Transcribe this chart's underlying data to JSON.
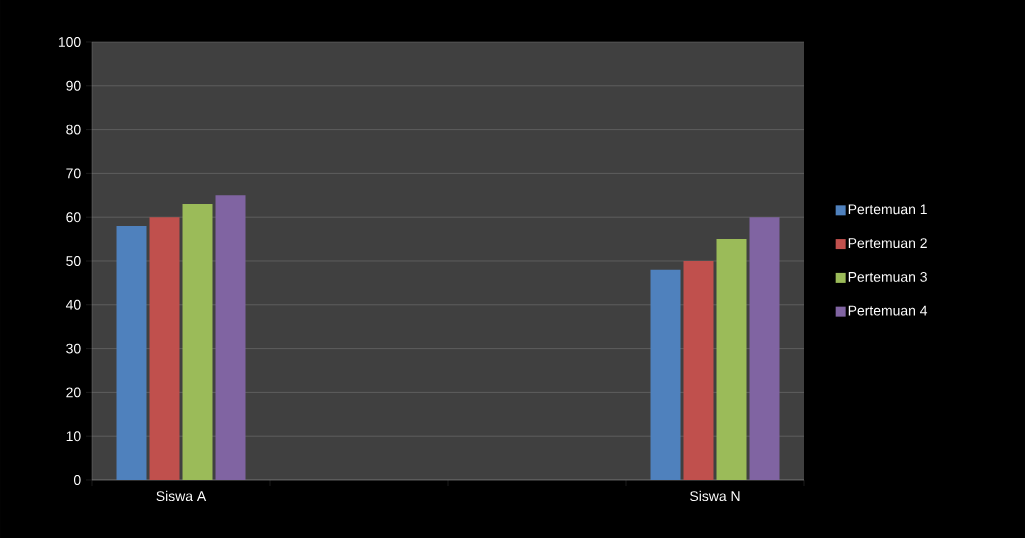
{
  "chart_data": {
    "type": "bar",
    "categories": [
      "Siswa A",
      null,
      null,
      "Siswa N"
    ],
    "series": [
      {
        "name": "Pertemuan 1",
        "color": "#4f81bd",
        "values": [
          58,
          null,
          null,
          48
        ]
      },
      {
        "name": "Pertemuan 2",
        "color": "#c0504d",
        "values": [
          60,
          null,
          null,
          50
        ]
      },
      {
        "name": "Pertemuan 3",
        "color": "#9bbb59",
        "values": [
          63,
          null,
          null,
          55
        ]
      },
      {
        "name": "Pertemuan 4",
        "color": "#8064a2",
        "values": [
          65,
          null,
          null,
          60
        ]
      }
    ],
    "ylim": [
      0,
      100
    ],
    "yticks": [
      0,
      10,
      20,
      30,
      40,
      50,
      60,
      70,
      80,
      90,
      100
    ],
    "grid": "y",
    "legend": "right"
  }
}
